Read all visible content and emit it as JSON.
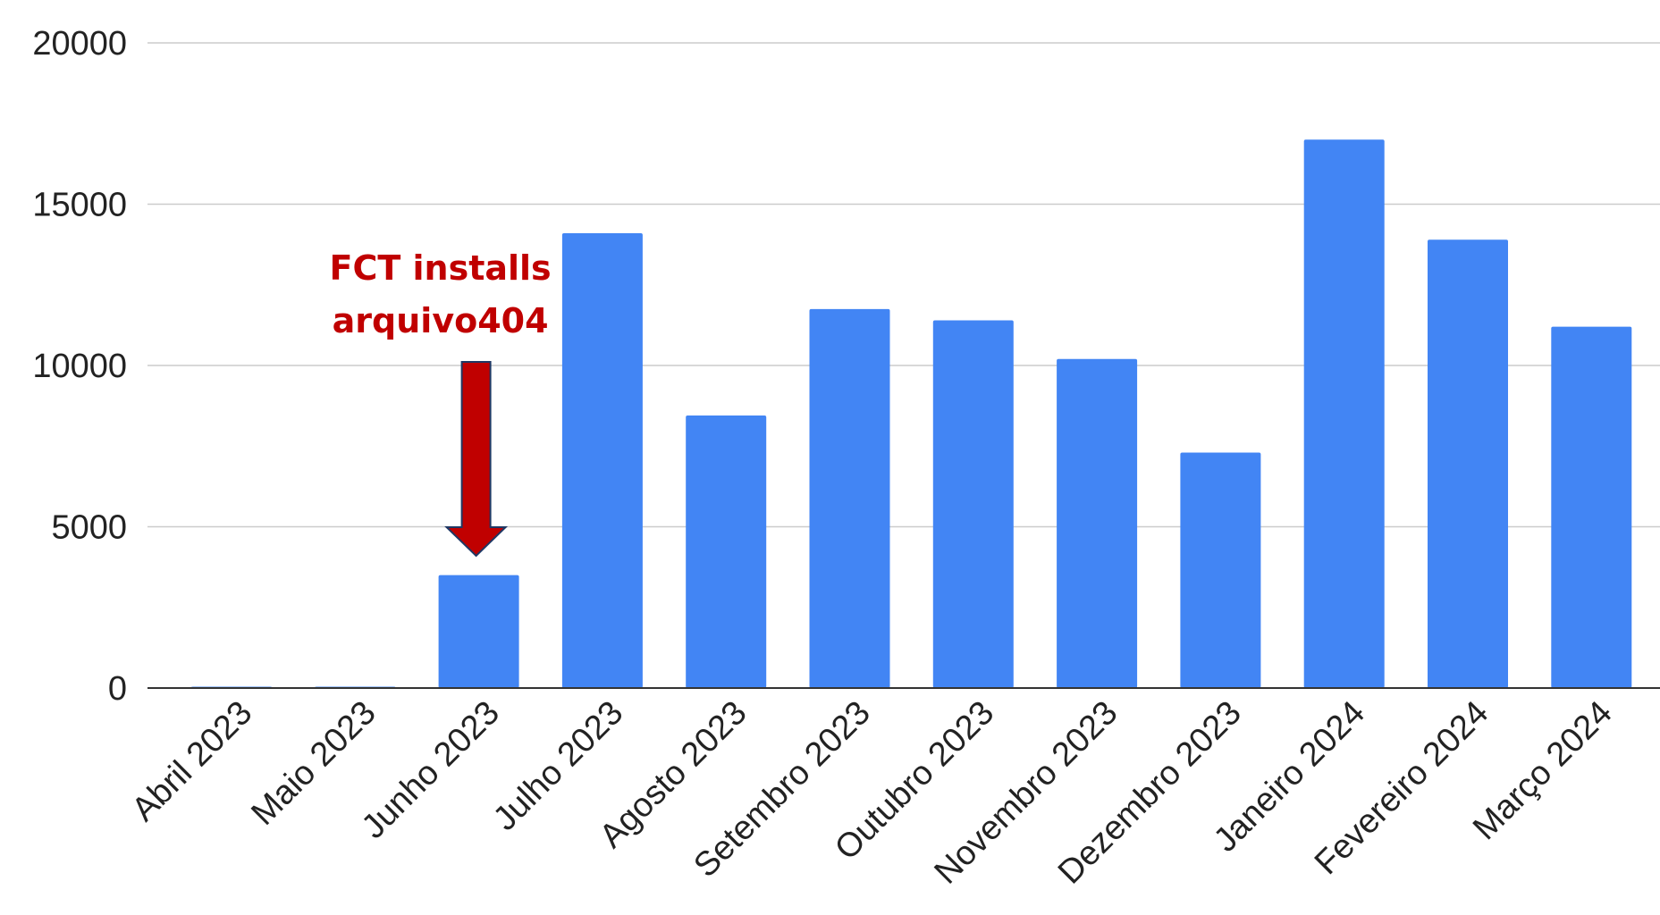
{
  "chart_data": {
    "type": "bar",
    "title": "",
    "xlabel": "",
    "ylabel": "",
    "categories": [
      "Abril 2023",
      "Maio 2023",
      "Junho 2023",
      "Julho 2023",
      "Agosto 2023",
      "Setembro 2023",
      "Outubro 2023",
      "Novembro 2023",
      "Dezembro 2023",
      "Janeiro 2024",
      "Fevereiro 2024",
      "Março 2024"
    ],
    "values": [
      40,
      40,
      3500,
      14100,
      8450,
      11750,
      11400,
      10200,
      7300,
      17000,
      13900,
      11200
    ],
    "ylim": [
      0,
      20000
    ],
    "yticks": [
      "0",
      "5000",
      "10000",
      "15000",
      "20000"
    ],
    "grid": true,
    "legend": "none",
    "bar_color": "#4285f4",
    "annotation": {
      "lines": [
        "FCT installs",
        "arquivo404"
      ],
      "target_category": "Junho 2023",
      "color": "#c00000",
      "arrow_outline": "#1f3864"
    }
  }
}
